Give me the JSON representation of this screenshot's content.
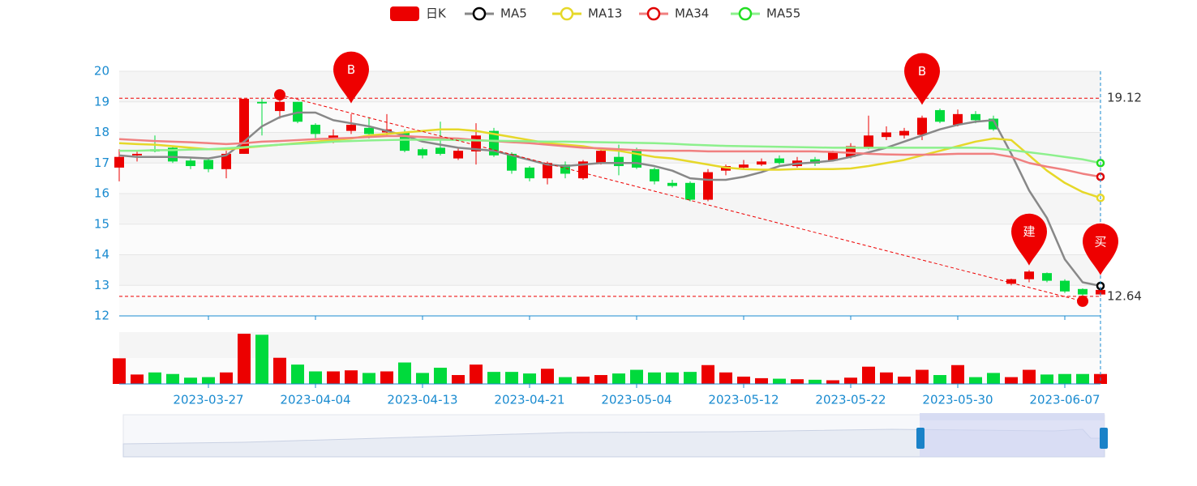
{
  "chart_data": {
    "type": "candlestick",
    "categories": [
      null,
      null,
      null,
      null,
      null,
      "2023-03-27",
      null,
      null,
      null,
      null,
      null,
      "2023-04-04",
      null,
      null,
      null,
      null,
      null,
      "2023-04-13",
      null,
      null,
      null,
      null,
      null,
      "2023-04-21",
      null,
      null,
      null,
      null,
      null,
      "2023-05-04",
      null,
      null,
      null,
      null,
      null,
      "2023-05-12",
      null,
      null,
      null,
      null,
      null,
      "2023-05-22",
      null,
      null,
      null,
      null,
      null,
      "2023-05-30",
      null,
      null,
      null,
      null,
      null,
      "2023-06-07",
      null,
      null
    ],
    "candles": {
      "name": "日K",
      "up_color": "#ec0000",
      "down_color": "#00da3c",
      "open": [
        16.85,
        17.25,
        17.45,
        17.5,
        17.08,
        17.1,
        16.8,
        17.3,
        19.0,
        18.7,
        19.0,
        18.25,
        17.78,
        18.05,
        18.15,
        18.0,
        18.0,
        17.45,
        17.5,
        17.15,
        17.38,
        18.05,
        17.3,
        16.85,
        16.5,
        16.95,
        16.5,
        17.0,
        17.2,
        17.45,
        16.8,
        16.35,
        16.35,
        15.8,
        16.75,
        16.85,
        16.95,
        17.15,
        16.9,
        17.12,
        17.08,
        17.2,
        17.5,
        17.85,
        17.9,
        17.92,
        18.73,
        18.25,
        18.6,
        18.45,
        13.05,
        13.2,
        13.4,
        13.15,
        12.88,
        12.7
      ],
      "close": [
        17.2,
        17.3,
        17.38,
        17.05,
        16.9,
        16.8,
        17.3,
        19.1,
        18.95,
        19.0,
        18.35,
        17.95,
        17.9,
        18.25,
        17.95,
        18.1,
        17.4,
        17.25,
        17.3,
        17.4,
        17.9,
        17.25,
        16.75,
        16.5,
        17.0,
        16.65,
        17.05,
        17.4,
        16.9,
        16.85,
        16.4,
        16.25,
        15.8,
        16.7,
        16.9,
        16.95,
        17.05,
        17.0,
        17.08,
        16.98,
        17.35,
        17.55,
        17.9,
        18.0,
        18.05,
        18.48,
        18.35,
        18.6,
        18.4,
        18.1,
        13.2,
        13.45,
        13.15,
        12.8,
        12.7,
        12.85
      ],
      "low": [
        16.4,
        17.05,
        17.35,
        17.0,
        16.8,
        16.7,
        16.5,
        17.3,
        17.9,
        18.45,
        18.3,
        17.8,
        17.65,
        17.95,
        17.8,
        17.9,
        17.35,
        17.15,
        17.25,
        17.1,
        16.95,
        17.2,
        16.65,
        16.4,
        16.3,
        16.5,
        16.45,
        16.95,
        16.6,
        16.8,
        16.3,
        16.2,
        15.75,
        15.75,
        16.6,
        16.8,
        16.9,
        16.95,
        16.85,
        16.9,
        17.05,
        17.15,
        17.45,
        17.75,
        17.8,
        17.75,
        18.3,
        18.2,
        18.3,
        18.05,
        13.0,
        13.1,
        13.1,
        12.75,
        12.5,
        12.64
      ],
      "high": [
        17.45,
        17.4,
        17.9,
        17.55,
        17.15,
        17.15,
        17.4,
        19.1,
        19.1,
        19.25,
        19.0,
        18.3,
        18.1,
        18.6,
        18.5,
        18.6,
        18.1,
        17.5,
        18.35,
        17.5,
        18.3,
        18.15,
        17.35,
        16.9,
        17.05,
        17.05,
        17.1,
        17.5,
        17.6,
        17.5,
        16.85,
        16.45,
        16.4,
        16.8,
        16.95,
        17.1,
        17.15,
        17.25,
        17.2,
        17.2,
        17.4,
        17.65,
        18.55,
        18.2,
        18.15,
        18.55,
        18.78,
        18.75,
        18.7,
        18.55,
        13.22,
        13.5,
        13.42,
        13.2,
        12.9,
        12.9
      ]
    },
    "series": [
      {
        "name": "MA5",
        "color": "#888888",
        "symbol_color": "#000000",
        "values": [
          17.25,
          17.2,
          17.2,
          17.2,
          17.18,
          17.15,
          17.25,
          17.7,
          18.2,
          18.5,
          18.65,
          18.65,
          18.4,
          18.3,
          18.2,
          18.05,
          17.9,
          17.7,
          17.6,
          17.5,
          17.45,
          17.4,
          17.25,
          17.1,
          16.95,
          16.9,
          16.95,
          17.0,
          17.0,
          17.0,
          16.9,
          16.75,
          16.5,
          16.45,
          16.45,
          16.55,
          16.7,
          16.9,
          16.98,
          17.02,
          17.08,
          17.2,
          17.35,
          17.5,
          17.7,
          17.9,
          18.1,
          18.25,
          18.35,
          18.4,
          17.3,
          16.1,
          15.2,
          13.85,
          13.1,
          12.98
        ]
      },
      {
        "name": "MA13",
        "color": "#e6d829",
        "symbol_color": "#e6d829",
        "values": [
          17.65,
          17.62,
          17.6,
          17.55,
          17.5,
          17.45,
          17.45,
          17.5,
          17.55,
          17.6,
          17.65,
          17.7,
          17.75,
          17.8,
          17.9,
          17.95,
          18.0,
          18.05,
          18.1,
          18.1,
          18.05,
          17.95,
          17.85,
          17.75,
          17.65,
          17.6,
          17.55,
          17.45,
          17.4,
          17.3,
          17.2,
          17.15,
          17.05,
          16.95,
          16.85,
          16.8,
          16.78,
          16.78,
          16.8,
          16.8,
          16.8,
          16.82,
          16.9,
          17.0,
          17.1,
          17.25,
          17.4,
          17.55,
          17.7,
          17.8,
          17.75,
          17.25,
          16.75,
          16.35,
          16.05,
          15.86
        ]
      },
      {
        "name": "MA34",
        "color": "#f08080",
        "symbol_color": "#e00000",
        "values": [
          17.78,
          17.75,
          17.72,
          17.7,
          17.68,
          17.65,
          17.62,
          17.65,
          17.7,
          17.72,
          17.75,
          17.78,
          17.8,
          17.82,
          17.85,
          17.88,
          17.88,
          17.85,
          17.82,
          17.8,
          17.75,
          17.72,
          17.68,
          17.65,
          17.6,
          17.55,
          17.5,
          17.48,
          17.45,
          17.42,
          17.4,
          17.4,
          17.4,
          17.38,
          17.38,
          17.38,
          17.38,
          17.38,
          17.38,
          17.38,
          17.36,
          17.33,
          17.3,
          17.28,
          17.27,
          17.27,
          17.28,
          17.3,
          17.3,
          17.3,
          17.2,
          17.0,
          16.88,
          16.78,
          16.65,
          16.55
        ]
      },
      {
        "name": "MA55",
        "color": "#8cf08c",
        "symbol_color": "#22dd22",
        "values": [
          17.4,
          17.4,
          17.42,
          17.42,
          17.44,
          17.45,
          17.48,
          17.52,
          17.56,
          17.6,
          17.63,
          17.66,
          17.7,
          17.72,
          17.74,
          17.75,
          17.76,
          17.76,
          17.76,
          17.75,
          17.74,
          17.73,
          17.72,
          17.71,
          17.7,
          17.7,
          17.69,
          17.68,
          17.67,
          17.66,
          17.65,
          17.63,
          17.6,
          17.58,
          17.56,
          17.55,
          17.54,
          17.53,
          17.52,
          17.51,
          17.5,
          17.5,
          17.5,
          17.5,
          17.5,
          17.5,
          17.5,
          17.5,
          17.5,
          17.48,
          17.42,
          17.35,
          17.28,
          17.2,
          17.12,
          17.0
        ]
      }
    ],
    "volume": [
      49,
      18,
      22,
      19,
      12,
      13,
      22,
      96,
      94,
      50,
      37,
      24,
      24,
      26,
      21,
      24,
      41,
      21,
      31,
      17,
      37,
      23,
      23,
      20,
      29,
      13,
      14,
      17,
      20,
      27,
      22,
      22,
      23,
      36,
      22,
      14,
      11,
      10,
      9,
      8,
      7,
      12,
      33,
      22,
      14,
      27,
      17,
      36,
      13,
      21,
      13,
      27,
      18,
      19,
      19,
      19
    ],
    "ylim": [
      12,
      20
    ],
    "yticks": [
      12,
      13,
      14,
      15,
      16,
      17,
      18,
      19,
      20
    ],
    "mark_lines": [
      19.12,
      12.64
    ],
    "mark_points": [
      {
        "label": "B",
        "index": 13,
        "value": 18.95
      },
      {
        "label": "B",
        "index": 45,
        "value": 18.9
      },
      {
        "label": "建",
        "index": 51,
        "value": 13.65
      },
      {
        "label": "买",
        "index": 55,
        "value": 13.33
      }
    ],
    "trend_line": {
      "from": {
        "index": 9,
        "value": 19.23
      },
      "to": {
        "index": 54,
        "value": 12.48
      }
    }
  }
}
